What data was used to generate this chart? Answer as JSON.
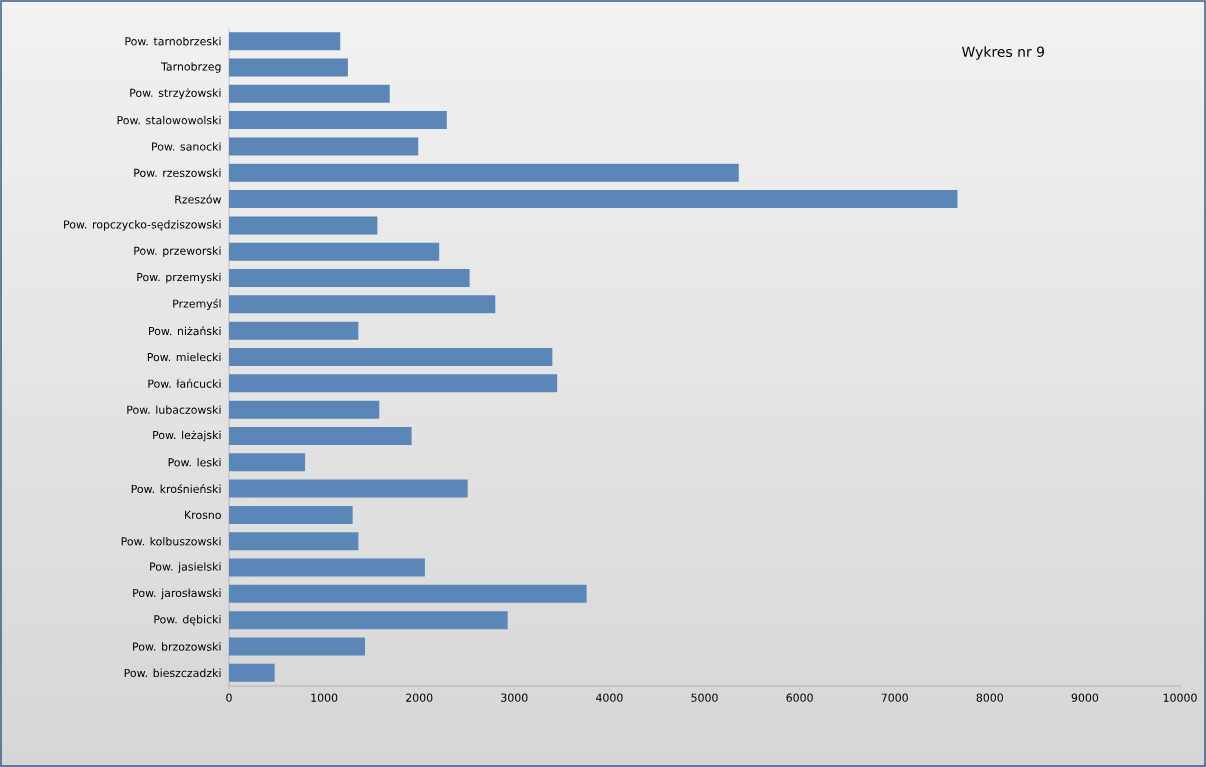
{
  "chart_data": {
    "type": "bar",
    "orientation": "horizontal",
    "title": "Wykres nr 9",
    "categories": [
      "Pow. tarnobrzeski",
      "Tarnobrzeg",
      "Pow. strzyżowski",
      "Pow. stalowowolski",
      "Pow. sanocki",
      "Pow. rzeszowski",
      "Rzeszów",
      "Pow. ropczycko-sędziszowski",
      "Pow. przeworski",
      "Pow. przemyski",
      "Przemyśl",
      "Pow. niżański",
      "Pow. mielecki",
      "Pow. łańcucki",
      "Pow. lubaczowski",
      "Pow. leżajski",
      "Pow. leski",
      "Pow. krośnieński",
      "Krosno",
      "Pow. kolbuszowski",
      "Pow. jasielski",
      "Pow. jarosławski",
      "Pow. dębicki",
      "Pow. brzozowski",
      "Pow. bieszczadzki"
    ],
    "values": [
      1170,
      1250,
      1690,
      2290,
      1990,
      5360,
      7660,
      1560,
      2210,
      2530,
      2800,
      1360,
      3400,
      3450,
      1580,
      1920,
      800,
      2510,
      1300,
      1360,
      2060,
      3760,
      2930,
      1430,
      480
    ],
    "color": "#5b86b8",
    "xlim": [
      0,
      10000
    ],
    "xticks": [
      0,
      1000,
      2000,
      3000,
      4000,
      5000,
      6000,
      7000,
      8000,
      9000,
      10000
    ],
    "grid": false
  }
}
